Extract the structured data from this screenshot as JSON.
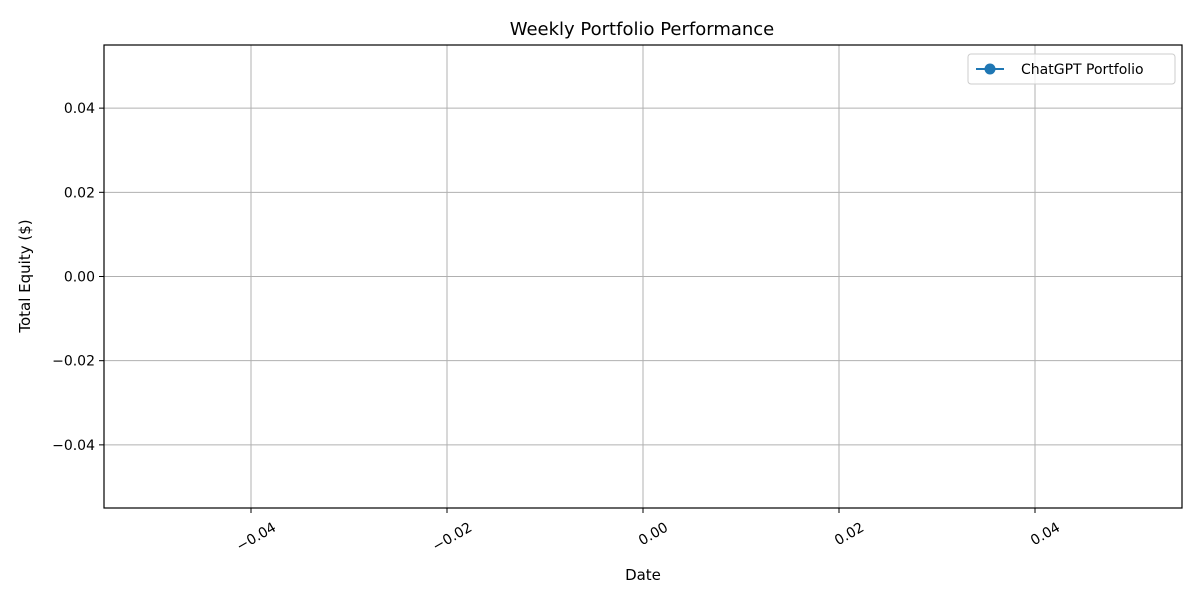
{
  "chart_data": {
    "type": "line",
    "title": "Weekly Portfolio Performance",
    "xlabel": "Date",
    "ylabel": "Total Equity ($)",
    "xlim": [
      -0.055,
      0.055
    ],
    "ylim": [
      -0.055,
      0.055
    ],
    "x_ticks": [
      -0.04,
      -0.02,
      0.0,
      0.02,
      0.04
    ],
    "x_tick_labels": [
      "−0.04",
      "−0.02",
      "0.00",
      "0.02",
      "0.04"
    ],
    "y_ticks": [
      -0.04,
      -0.02,
      0.0,
      0.02,
      0.04
    ],
    "y_tick_labels": [
      "−0.04",
      "−0.02",
      "0.00",
      "0.02",
      "0.04"
    ],
    "x_tick_rotation_deg": 30,
    "grid": true,
    "legend_position": "top-right",
    "series": [
      {
        "name": "ChatGPT Portfolio",
        "color": "#1f77b4",
        "marker": "circle",
        "x": [],
        "y": []
      }
    ]
  }
}
